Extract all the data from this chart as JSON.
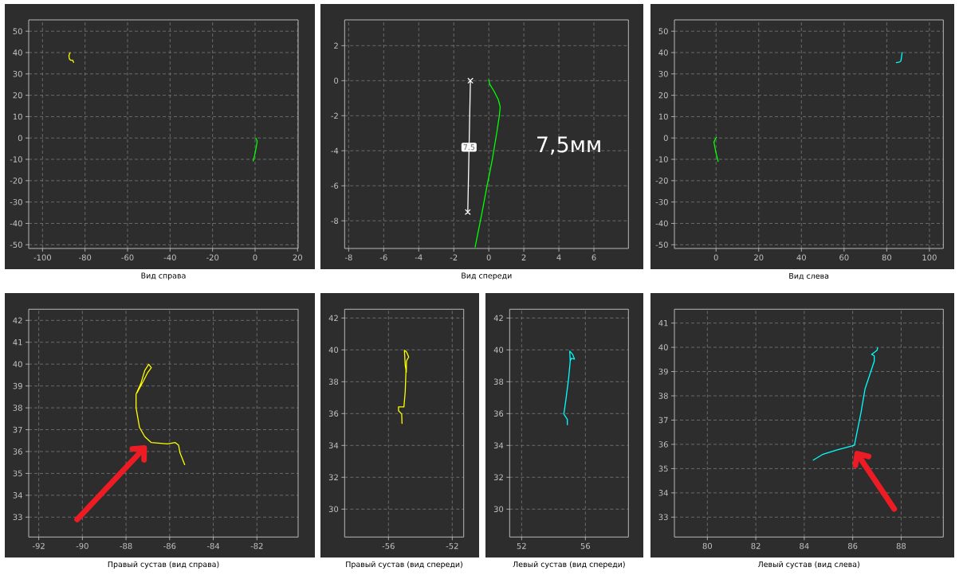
{
  "chart_data": [
    {
      "type": "line",
      "title": "Вид справа",
      "xlim": [
        -106.5,
        20.25
      ],
      "ylim": [
        -51.75,
        55.3
      ],
      "xticks": [
        -100,
        -80,
        -60,
        -40,
        -20,
        0,
        20
      ],
      "yticks": [
        -50,
        -40,
        -30,
        -20,
        -10,
        0,
        10,
        20,
        30,
        40,
        50
      ],
      "grid": true,
      "series": [
        {
          "color": "#ffff00",
          "x": [
            -87.0,
            -87.3,
            -87.6,
            -87.4,
            -86.8,
            -85.8,
            -85.4
          ],
          "values": [
            39.9,
            39.4,
            38.5,
            37.1,
            36.4,
            36.4,
            35.4
          ]
        },
        {
          "color": "#00ff00",
          "x": [
            0.3,
            1.0,
            0.6,
            -0.2,
            -0.9
          ],
          "values": [
            0,
            -1.5,
            -4,
            -8,
            -10.8
          ]
        }
      ]
    },
    {
      "type": "line",
      "title": "Вид спереди",
      "xlim": [
        -8.23,
        7.97
      ],
      "ylim": [
        -9.58,
        3.47
      ],
      "xticks": [
        -8,
        -6,
        -4,
        -2,
        0,
        2,
        4,
        6
      ],
      "yticks": [
        -8,
        -6,
        -4,
        -2,
        0,
        2
      ],
      "grid": true,
      "series": [
        {
          "color": "#00ff00",
          "x": [
            0.0,
            0.05,
            0.3,
            0.55,
            0.65,
            0.6,
            0.45,
            0.2,
            -0.1,
            -0.4,
            -0.78
          ],
          "values": [
            0.05,
            -0.2,
            -0.6,
            -1.1,
            -1.5,
            -2.0,
            -3.0,
            -4.5,
            -6.0,
            -7.6,
            -9.5
          ]
        },
        {
          "color": "#ffffff",
          "marker": "cross",
          "x": [
            -1.05,
            -1.2
          ],
          "values": [
            0,
            -7.5
          ]
        }
      ],
      "annotations": [
        {
          "text": "7.5",
          "x": -1.13,
          "y": -3.8
        },
        "7,5мм"
      ]
    },
    {
      "type": "line",
      "title": "Вид слева",
      "xlim": [
        -19.5,
        106.5
      ],
      "ylim": [
        -51.75,
        55.3
      ],
      "xticks": [
        0,
        20,
        40,
        60,
        80,
        100
      ],
      "yticks": [
        -50,
        -40,
        -30,
        -20,
        -10,
        0,
        10,
        20,
        30,
        40,
        50
      ],
      "grid": true,
      "series": [
        {
          "color": "#00ff00",
          "x": [
            0.2,
            -0.3,
            -1.0,
            0.0,
            1.0
          ],
          "values": [
            0.3,
            -0.5,
            -2,
            -7,
            -11
          ]
        },
        {
          "color": "#00ffff",
          "x": [
            84.5,
            86.0,
            86.6,
            87.0,
            87.2
          ],
          "values": [
            35.3,
            35.6,
            36.0,
            38.5,
            40.0
          ]
        }
      ]
    },
    {
      "type": "line",
      "title": "Правый сустав (вид справа)",
      "xlim": [
        -92.46,
        -80.11
      ],
      "ylim": [
        32.09,
        42.51
      ],
      "xticks": [
        -92,
        -90,
        -88,
        -86,
        -84,
        -82
      ],
      "yticks": [
        33,
        34,
        35,
        36,
        37,
        38,
        39,
        40,
        41,
        42
      ],
      "grid": true,
      "series": [
        {
          "color": "#ffff00",
          "x": [
            -85.31,
            -85.53,
            -85.59,
            -85.74,
            -86.1,
            -86.84,
            -87.14,
            -87.38,
            -87.54,
            -87.54,
            -87.32,
            -87.14,
            -86.96,
            -86.84,
            -87.02,
            -87.2,
            -87.5
          ],
          "values": [
            35.4,
            35.95,
            36.29,
            36.41,
            36.35,
            36.41,
            36.68,
            37.1,
            38.01,
            38.62,
            39.11,
            39.71,
            39.99,
            39.84,
            39.59,
            39.23,
            38.68
          ]
        }
      ]
    },
    {
      "type": "line",
      "title": "Правый сустав (вид спереди)",
      "xlim": [
        -58.75,
        -51.28
      ],
      "ylim": [
        28.25,
        42.55
      ],
      "xticks": [
        -56,
        -52
      ],
      "yticks": [
        30,
        32,
        34,
        36,
        38,
        40,
        42
      ],
      "grid": true,
      "series": [
        {
          "color": "#ffff00",
          "x": [
            -55.15,
            -55.17,
            -55.37,
            -55.37,
            -55.03,
            -54.95,
            -54.9,
            -54.95,
            -55.0,
            -54.87,
            -54.73,
            -54.87,
            -54.88
          ],
          "values": [
            35.38,
            35.97,
            36.18,
            36.42,
            36.42,
            37.38,
            38.72,
            39.05,
            39.97,
            39.88,
            39.55,
            39.3,
            38.6
          ]
        }
      ]
    },
    {
      "type": "line",
      "title": "Левый сустав (вид спереди)",
      "xlim": [
        51.25,
        58.7
      ],
      "ylim": [
        28.25,
        42.55
      ],
      "xticks": [
        52,
        56
      ],
      "yticks": [
        30,
        32,
        34,
        36,
        38,
        40,
        42
      ],
      "grid": true,
      "series": [
        {
          "color": "#00ffff",
          "x": [
            54.87,
            54.87,
            54.65,
            54.78,
            54.95,
            55.05,
            55.02,
            55.2,
            55.32,
            55.12,
            55.05
          ],
          "values": [
            35.3,
            35.63,
            35.97,
            36.88,
            38.22,
            39.3,
            39.92,
            39.72,
            39.42,
            39.47,
            39.3
          ]
        }
      ]
    },
    {
      "type": "line",
      "title": "Левый сустав (вид слева)",
      "xlim": [
        78.64,
        89.74
      ],
      "ylim": [
        32.18,
        41.57
      ],
      "xticks": [
        80,
        82,
        84,
        86,
        88
      ],
      "yticks": [
        33,
        34,
        35,
        36,
        37,
        38,
        39,
        40,
        41
      ],
      "grid": true,
      "series": [
        {
          "color": "#00ffff",
          "x": [
            84.37,
            84.75,
            85.36,
            86.07,
            86.34,
            86.51,
            86.89,
            86.89,
            86.78,
            87.0,
            87.03
          ],
          "values": [
            35.35,
            35.58,
            35.77,
            35.96,
            37.3,
            38.29,
            39.43,
            39.65,
            39.71,
            39.87,
            39.98
          ]
        }
      ]
    }
  ]
}
